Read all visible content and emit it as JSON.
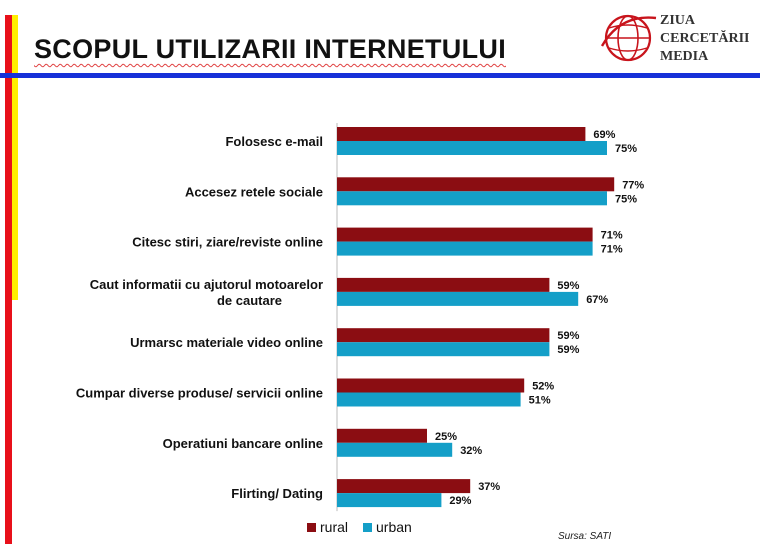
{
  "slide": {
    "title": "SCOPUL UTILIZARII INTERNETULUI",
    "logo_lines": [
      "ZIUA",
      "CERCETĂRII",
      "MEDIA"
    ],
    "source": "Sursa: SATI"
  },
  "colors": {
    "rural": "#8b0d12",
    "urban": "#149fc8",
    "accent_red": "#e8101a",
    "accent_yellow": "#ffee00",
    "accent_blue": "#1630d8"
  },
  "chart_data": {
    "type": "bar",
    "orientation": "horizontal",
    "categories": [
      "Folosesc e-mail",
      "Accesez retele sociale",
      "Citesc stiri, ziare/reviste online",
      "Caut informatii cu ajutorul motoarelor de cautare",
      "Urmarsc materiale video online",
      "Cumpar diverse produse/ servicii online",
      "Operatiuni bancare online",
      "Flirting/ Dating"
    ],
    "series": [
      {
        "name": "rural",
        "values": [
          69,
          77,
          71,
          59,
          59,
          52,
          25,
          37
        ],
        "labels": [
          "69%",
          "77%",
          "71%",
          "59%",
          "59%",
          "52%",
          "25%",
          "37%"
        ]
      },
      {
        "name": "urban",
        "values": [
          75,
          75,
          71,
          67,
          59,
          51,
          32,
          29
        ],
        "labels": [
          "75%",
          "75%",
          "71%",
          "67%",
          "59%",
          "51%",
          "32%",
          "29%"
        ]
      }
    ],
    "xlim": [
      0,
      100
    ],
    "value_unit": "%",
    "legend": "bottom",
    "grid": false
  }
}
